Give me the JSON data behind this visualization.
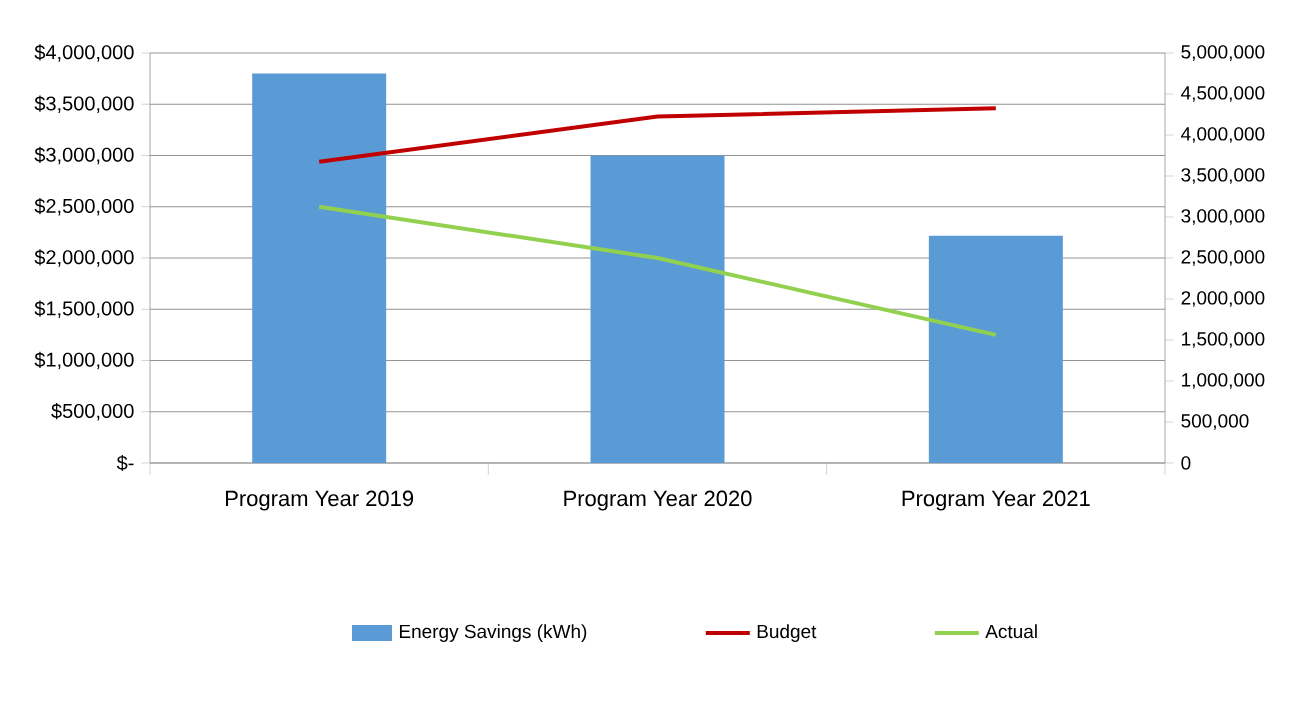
{
  "chart_data": {
    "type": "bar",
    "categories": [
      "Program Year 2019",
      "Program Year 2020",
      "Program Year 2021"
    ],
    "series": [
      {
        "name": "Energy Savings (kWh)",
        "axis": "y2",
        "color": "#5b9bd5",
        "values": [
          4750000,
          3750000,
          2770000
        ]
      },
      {
        "name": "Budget",
        "type": "line",
        "color": "#c00000",
        "values": [
          2940000,
          3380000,
          3460000
        ]
      },
      {
        "name": "Actual",
        "type": "line",
        "color": "#92d050",
        "values": [
          2500000,
          2000000,
          1250000
        ]
      }
    ],
    "ylim": [
      0,
      4000000
    ],
    "yticks": [
      {
        "value": 0,
        "label": "$-"
      },
      {
        "value": 500000,
        "label": "$500,000"
      },
      {
        "value": 1000000,
        "label": "$1,000,000"
      },
      {
        "value": 1500000,
        "label": "$1,500,000"
      },
      {
        "value": 2000000,
        "label": "$2,000,000"
      },
      {
        "value": 2500000,
        "label": "$2,500,000"
      },
      {
        "value": 3000000,
        "label": "$3,000,000"
      },
      {
        "value": 3500000,
        "label": "$3,500,000"
      },
      {
        "value": 4000000,
        "label": "$4,000,000"
      }
    ],
    "y2lim": [
      0,
      5000000
    ],
    "y2ticks": [
      0,
      {
        "value": 500000,
        "label": "500,000"
      },
      {
        "value": 1000000,
        "label": "1,000,000"
      },
      {
        "value": 1500000,
        "label": "1,500,000"
      },
      {
        "value": 2000000,
        "label": "2,000,000"
      },
      {
        "value": 2500000,
        "label": "2,500,000"
      },
      {
        "value": 3000000,
        "label": "3,000,000"
      },
      {
        "value": 3500000,
        "label": "3,500,000"
      },
      {
        "value": 4000000,
        "label": "4,000,000"
      },
      {
        "value": 4500000,
        "label": "4,500,000"
      },
      {
        "value": 5000000,
        "label": "5,000,000"
      }
    ],
    "grid": "y",
    "legend": "bottom"
  }
}
